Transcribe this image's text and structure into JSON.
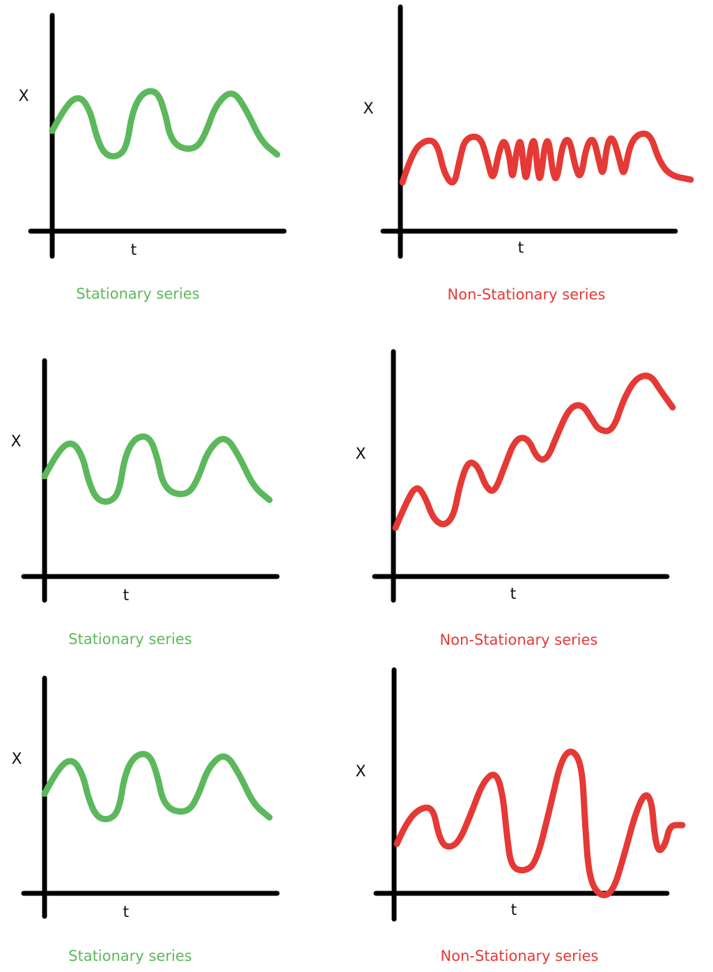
{
  "colors": {
    "axis": "#000000",
    "stationary": "#5cb85c",
    "non_stationary": "#e53935"
  },
  "panels": [
    {
      "id": "stationary-1",
      "kind": "stationary",
      "pattern": "steady-wave",
      "y_label": "X",
      "x_label": "t",
      "caption": "Stationary series"
    },
    {
      "id": "non-stationary-1",
      "kind": "non_stationary",
      "pattern": "varying-frequency",
      "y_label": "X",
      "x_label": "t",
      "caption": "Non-Stationary series"
    },
    {
      "id": "stationary-2",
      "kind": "stationary",
      "pattern": "steady-wave",
      "y_label": "X",
      "x_label": "t",
      "caption": "Stationary series"
    },
    {
      "id": "non-stationary-2",
      "kind": "non_stationary",
      "pattern": "upward-trend",
      "y_label": "X",
      "x_label": "t",
      "caption": "Non-Stationary series"
    },
    {
      "id": "stationary-3",
      "kind": "stationary",
      "pattern": "steady-wave",
      "y_label": "X",
      "x_label": "t",
      "caption": "Stationary series"
    },
    {
      "id": "non-stationary-3",
      "kind": "non_stationary",
      "pattern": "varying-amplitude",
      "y_label": "X",
      "x_label": "t",
      "caption": "Non-Stationary series"
    }
  ]
}
